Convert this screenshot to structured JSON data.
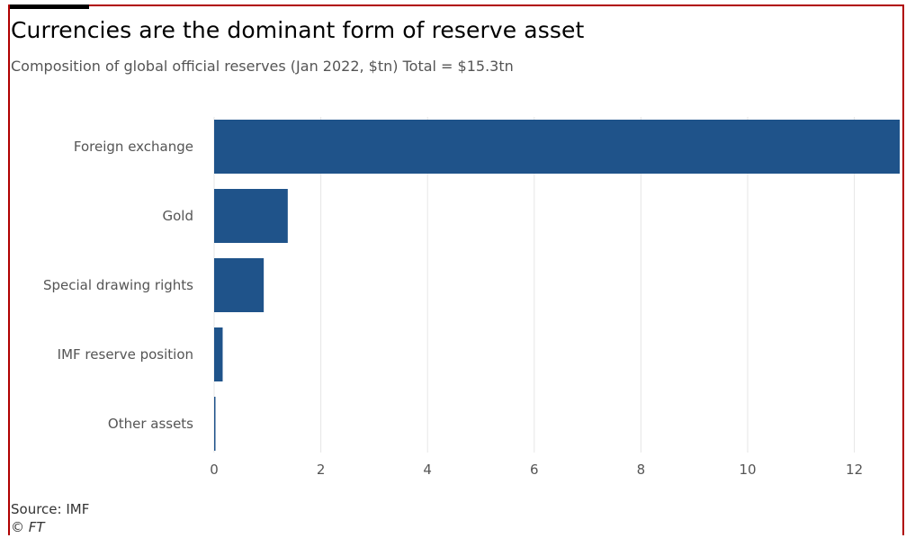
{
  "header": {
    "title": "Currencies are the dominant form of reserve asset",
    "subtitle": "Composition of global official reserves (Jan 2022, $tn) Total = $15.3tn"
  },
  "footer": {
    "source": "Source: IMF",
    "copyright": "© FT"
  },
  "colors": {
    "bar": "#1f538a",
    "grid": "#e6e6e6",
    "axis_text": "#555555",
    "frame": "#b00000"
  },
  "chart_data": {
    "type": "bar",
    "orientation": "horizontal",
    "categories": [
      "Foreign exchange",
      "Gold",
      "Special drawing rights",
      "IMF reserve position",
      "Other assets"
    ],
    "values": [
      12.85,
      1.38,
      0.93,
      0.16,
      0.02
    ],
    "xlim": [
      0,
      12.85
    ],
    "xticks": [
      0,
      2,
      4,
      6,
      8,
      10,
      12
    ],
    "grid": "vertical"
  }
}
